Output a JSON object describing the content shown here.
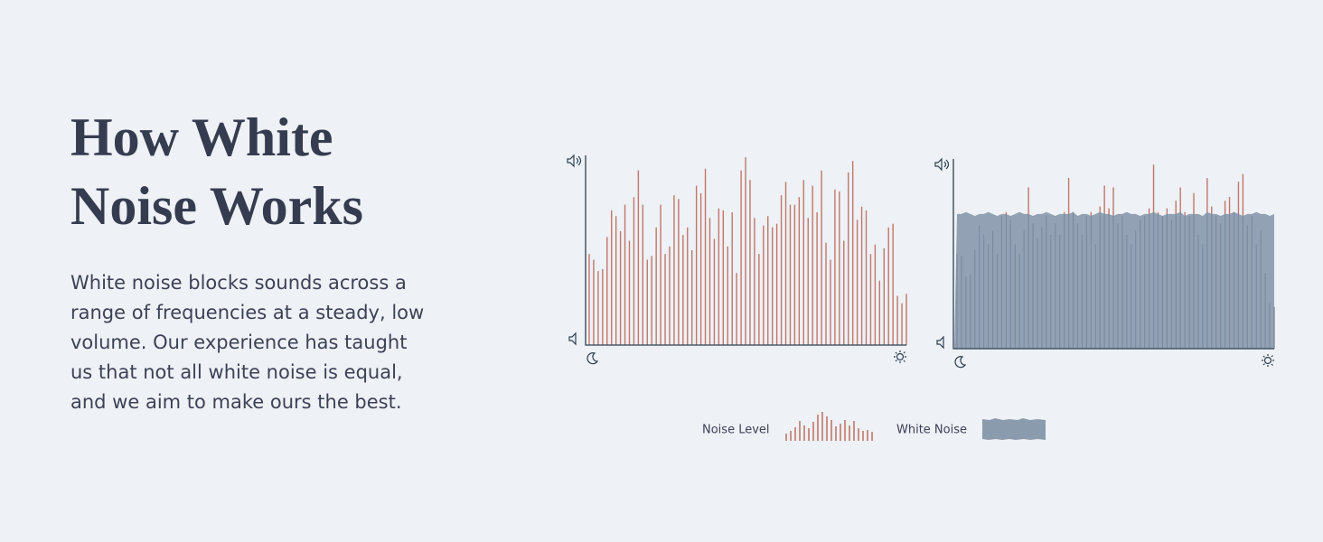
{
  "heading": {
    "lines": [
      "How White",
      "Noise Works"
    ]
  },
  "body": {
    "lines": [
      "White noise blocks sounds across a",
      "range of frequencies at a steady, low",
      "volume. Our experience has taught",
      "us that not all white noise is equal,",
      "and we aim to make ours the best."
    ]
  },
  "chart_data": [
    {
      "type": "bar",
      "ylim": [
        0,
        100
      ],
      "series": [
        {
          "name": "Noise Level",
          "color": "#c0776b",
          "values": [
            48,
            45,
            39,
            40,
            57,
            71,
            68,
            60,
            74,
            55,
            78,
            92,
            74,
            45,
            47,
            62,
            74,
            48,
            52,
            79,
            77,
            58,
            62,
            50,
            84,
            80,
            93,
            67,
            56,
            72,
            71,
            52,
            70,
            38,
            92,
            99,
            87,
            67,
            48,
            63,
            68,
            62,
            64,
            79,
            86,
            74,
            74,
            78,
            87,
            67,
            84,
            70,
            92,
            54,
            45,
            82,
            81,
            55,
            91,
            97,
            66,
            73,
            71,
            48,
            53,
            34,
            51,
            62,
            64,
            26,
            22,
            27
          ]
        }
      ]
    },
    {
      "type": "bar",
      "ylim": [
        0,
        100
      ],
      "series": [
        {
          "name": "Noise Level",
          "color": "#c0776b",
          "values": [
            50,
            49,
            38,
            39,
            52,
            65,
            60,
            55,
            62,
            50,
            70,
            72,
            68,
            55,
            50,
            62,
            85,
            66,
            58,
            64,
            70,
            60,
            66,
            60,
            72,
            90,
            72,
            66,
            60,
            70,
            72,
            55,
            75,
            86,
            74,
            85,
            66,
            70,
            60,
            55,
            62,
            68,
            70,
            74,
            97,
            72,
            70,
            74,
            68,
            78,
            85,
            72,
            70,
            82,
            60,
            55,
            90,
            75,
            70,
            66,
            78,
            80,
            72,
            88,
            92,
            65,
            70,
            55,
            62,
            40,
            24,
            22
          ]
        },
        {
          "name": "White Noise",
          "color": "#8a9bae",
          "values": [
            71,
            71,
            72,
            71,
            70,
            71,
            71,
            72,
            71,
            70,
            71,
            71,
            70,
            71,
            72,
            71,
            71,
            70,
            71,
            71,
            72,
            71,
            70,
            71,
            71,
            71,
            72,
            70,
            71,
            71,
            70,
            71,
            72,
            71,
            71,
            70,
            71,
            71,
            72,
            71,
            71,
            70,
            71,
            71,
            72,
            71,
            70,
            71,
            71,
            71,
            72,
            70,
            71,
            71,
            71,
            70,
            72,
            71,
            71,
            70,
            71,
            71,
            72,
            71,
            70,
            71,
            71,
            72,
            71,
            71,
            70,
            71
          ]
        }
      ]
    }
  ]
}
